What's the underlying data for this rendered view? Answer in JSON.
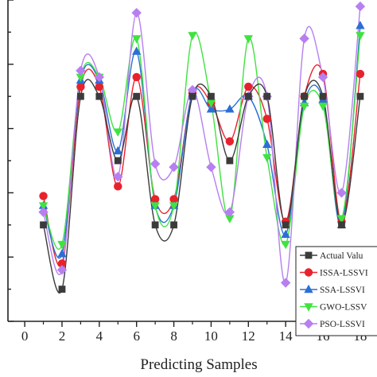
{
  "chart_data": {
    "type": "line",
    "xlabel": "Predicting Samples",
    "ylabel": "",
    "x_ticks": [
      "0",
      "2",
      "4",
      "6",
      "8",
      "10",
      "12",
      "14",
      "16",
      "18"
    ],
    "xlim": [
      -0.9,
      18.9
    ],
    "ylim": [
      0,
      10
    ],
    "grid": false,
    "legend_position": "bottom-right",
    "x": [
      1,
      2,
      3,
      4,
      5,
      6,
      7,
      8,
      9,
      10,
      11,
      12,
      13,
      14,
      15,
      16,
      17,
      18
    ],
    "series": [
      {
        "name": "Actual Valu",
        "color": "#3b3b3b",
        "marker": "square",
        "values": [
          3.0,
          1.0,
          7.0,
          7.0,
          5.0,
          7.0,
          3.0,
          3.0,
          7.0,
          7.0,
          5.0,
          7.0,
          7.0,
          3.0,
          7.0,
          7.0,
          3.0,
          7.0
        ]
      },
      {
        "name": "ISSA-LSSVI",
        "color": "#e8222c",
        "marker": "circle",
        "values": [
          3.9,
          1.8,
          7.3,
          7.3,
          4.2,
          7.6,
          3.8,
          3.8,
          7.1,
          6.8,
          5.6,
          7.3,
          6.3,
          3.1,
          7.0,
          7.7,
          3.1,
          7.7
        ]
      },
      {
        "name": "SSA-LSSVI",
        "color": "#2b6fd6",
        "marker": "triangle-up",
        "values": [
          3.6,
          2.1,
          7.5,
          7.5,
          5.3,
          8.4,
          3.6,
          3.6,
          7.1,
          6.6,
          6.6,
          7.0,
          5.5,
          2.7,
          6.8,
          6.9,
          3.0,
          9.2
        ]
      },
      {
        "name": "GWO-LSSV",
        "color": "#3fe33f",
        "marker": "triangle-down",
        "values": [
          3.6,
          2.4,
          7.6,
          7.6,
          5.9,
          8.8,
          3.6,
          3.6,
          8.9,
          6.8,
          3.2,
          8.8,
          5.1,
          2.4,
          6.7,
          6.7,
          3.2,
          8.9
        ]
      },
      {
        "name": "PSO-LSSVI",
        "color": "#b77ff0",
        "marker": "diamond",
        "values": [
          3.4,
          1.6,
          7.8,
          7.6,
          4.5,
          9.6,
          4.9,
          4.8,
          7.2,
          4.8,
          3.4,
          7.0,
          7.0,
          1.2,
          8.8,
          7.6,
          4.0,
          9.8
        ]
      }
    ]
  }
}
